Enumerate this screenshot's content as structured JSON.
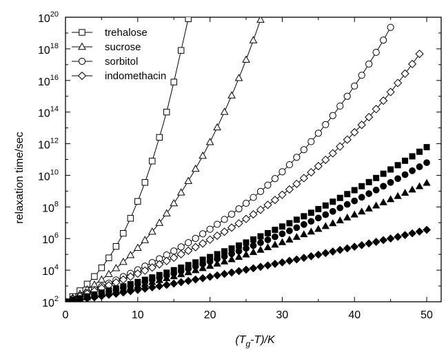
{
  "chart_data": {
    "type": "scatter",
    "xlabel": "(T",
    "xlabel_sub": "g",
    "xlabel_rest": "-T)/K",
    "ylabel": "relaxation time/sec",
    "xlim": [
      0,
      52
    ],
    "ylim_log10": [
      2,
      20
    ],
    "y_scale": "log",
    "x_ticks": [
      0,
      10,
      20,
      30,
      40,
      50
    ],
    "y_ticks_exponent": [
      2,
      4,
      6,
      8,
      10,
      12,
      14,
      16,
      18,
      20
    ],
    "y_tick_base": "10",
    "legend_position": "top-left",
    "series": [
      {
        "name": "trehalose",
        "marker": "square-open",
        "line": true,
        "log10_y": [
          2.0,
          2.33,
          2.7,
          3.12,
          3.6,
          4.15,
          4.78,
          5.5,
          6.33,
          7.28,
          8.35,
          9.55,
          10.9,
          12.4,
          14.0,
          15.9,
          17.9,
          19.9
        ]
      },
      {
        "name": "sucrose",
        "marker": "triangle-open",
        "line": true,
        "log10_y": [
          2.0,
          2.25,
          2.5,
          2.78,
          3.08,
          3.4,
          3.75,
          4.12,
          4.52,
          4.95,
          5.41,
          5.9,
          6.43,
          6.99,
          7.59,
          8.23,
          8.91,
          9.64,
          10.41,
          11.23,
          12.1,
          13.03,
          14.01,
          15.05,
          16.15,
          17.31,
          18.54,
          19.84
        ]
      },
      {
        "name": "sorbitol",
        "marker": "circle-open",
        "line": true,
        "log10_y": [
          2.0,
          2.19,
          2.38,
          2.57,
          2.77,
          2.97,
          3.17,
          3.38,
          3.59,
          3.8,
          4.02,
          4.25,
          4.48,
          4.72,
          4.96,
          5.21,
          5.47,
          5.74,
          6.01,
          6.3,
          6.59,
          6.9,
          7.21,
          7.54,
          7.88,
          8.23,
          8.6,
          8.98,
          9.38,
          9.79,
          10.22,
          10.67,
          11.14,
          11.62,
          12.13,
          12.66,
          13.21,
          13.78,
          14.38,
          15.0,
          15.65,
          16.33,
          17.04,
          17.78,
          18.55,
          19.36
        ]
      },
      {
        "name": "indomethacin",
        "marker": "diamond-open",
        "line": true,
        "log10_y": [
          2.0,
          2.17,
          2.34,
          2.51,
          2.68,
          2.86,
          3.04,
          3.22,
          3.4,
          3.59,
          3.78,
          3.97,
          4.17,
          4.37,
          4.58,
          4.79,
          5.01,
          5.23,
          5.46,
          5.69,
          5.93,
          6.18,
          6.43,
          6.69,
          6.96,
          7.24,
          7.53,
          7.82,
          8.13,
          8.44,
          8.77,
          9.11,
          9.46,
          9.82,
          10.19,
          10.58,
          10.98,
          11.39,
          11.82,
          12.26,
          12.72,
          13.19,
          13.68,
          14.19,
          14.72,
          15.27,
          15.84,
          16.43,
          17.04,
          17.68
        ]
      },
      {
        "marker": "square-filled",
        "line": false,
        "log10_y": [
          2.0,
          2.11,
          2.22,
          2.34,
          2.46,
          2.58,
          2.71,
          2.84,
          2.97,
          3.11,
          3.25,
          3.39,
          3.54,
          3.69,
          3.84,
          4.0,
          4.16,
          4.32,
          4.49,
          4.66,
          4.83,
          5.01,
          5.19,
          5.37,
          5.56,
          5.75,
          5.94,
          6.14,
          6.34,
          6.55,
          6.76,
          6.97,
          7.19,
          7.41,
          7.63,
          7.86,
          8.09,
          8.33,
          8.57,
          8.81,
          9.06,
          9.31,
          9.57,
          9.83,
          10.1,
          10.37,
          10.64,
          10.92,
          11.2,
          11.49,
          11.78
        ]
      },
      {
        "marker": "circle-filled",
        "line": false,
        "log10_y": [
          2.0,
          2.1,
          2.2,
          2.31,
          2.42,
          2.53,
          2.64,
          2.76,
          2.88,
          3.0,
          3.13,
          3.26,
          3.39,
          3.52,
          3.66,
          3.8,
          3.94,
          4.09,
          4.24,
          4.39,
          4.55,
          4.71,
          4.87,
          5.04,
          5.21,
          5.38,
          5.56,
          5.74,
          5.92,
          6.11,
          6.3,
          6.49,
          6.69,
          6.89,
          7.09,
          7.3,
          7.51,
          7.72,
          7.94,
          8.16,
          8.38,
          8.61,
          8.84,
          9.07,
          9.31,
          9.55,
          9.79,
          10.04,
          10.29,
          10.54,
          10.8
        ]
      },
      {
        "marker": "triangle-filled",
        "line": false,
        "log10_y": [
          2.0,
          2.09,
          2.18,
          2.28,
          2.38,
          2.48,
          2.58,
          2.68,
          2.79,
          2.9,
          3.01,
          3.12,
          3.24,
          3.36,
          3.48,
          3.6,
          3.73,
          3.86,
          3.99,
          4.12,
          4.26,
          4.4,
          4.54,
          4.68,
          4.83,
          4.98,
          5.13,
          5.28,
          5.44,
          5.6,
          5.76,
          5.92,
          6.09,
          6.26,
          6.43,
          6.6,
          6.78,
          6.96,
          7.14,
          7.32,
          7.51,
          7.7,
          7.89,
          8.08,
          8.28,
          8.48,
          8.68,
          8.88,
          9.09,
          9.3,
          9.51
        ]
      },
      {
        "marker": "diamond-filled",
        "line": false,
        "log10_y": [
          2.0,
          2.07,
          2.14,
          2.21,
          2.28,
          2.36,
          2.44,
          2.51,
          2.59,
          2.67,
          2.75,
          2.83,
          2.91,
          2.99,
          3.07,
          3.15,
          3.24,
          3.32,
          3.41,
          3.49,
          3.58,
          3.67,
          3.76,
          3.85,
          3.94,
          4.03,
          4.12,
          4.21,
          4.3,
          4.4,
          4.49,
          4.59,
          4.68,
          4.78,
          4.88,
          4.98,
          5.08,
          5.18,
          5.28,
          5.38,
          5.48,
          5.58,
          5.69,
          5.79,
          5.9,
          6.0,
          6.11,
          6.22,
          6.33,
          6.44,
          6.55
        ]
      }
    ],
    "x_values": [
      0,
      1,
      2,
      3,
      4,
      5,
      6,
      7,
      8,
      9,
      10,
      11,
      12,
      13,
      14,
      15,
      16,
      17,
      18,
      19,
      20,
      21,
      22,
      23,
      24,
      25,
      26,
      27,
      28,
      29,
      30,
      31,
      32,
      33,
      34,
      35,
      36,
      37,
      38,
      39,
      40,
      41,
      42,
      43,
      44,
      45,
      46,
      47,
      48,
      49,
      50,
      51
    ]
  }
}
